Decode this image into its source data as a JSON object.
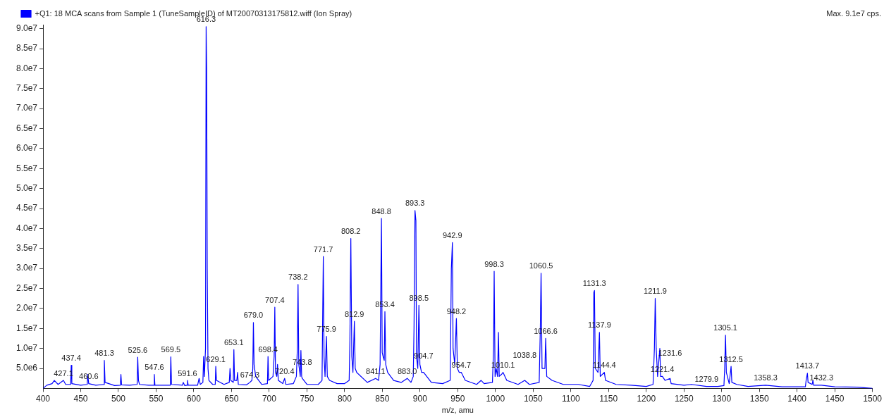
{
  "chart_data": {
    "type": "line",
    "xlabel": "m/z, amu",
    "x": [
      400,
      405,
      412,
      415,
      420,
      427.1,
      430,
      436.6,
      437.4,
      438.2,
      450,
      458.6,
      459.3,
      460.6,
      470,
      480.5,
      481.3,
      482.3,
      495,
      502.5,
      503.3,
      504.2,
      515,
      524.8,
      525.6,
      526.6,
      528,
      540,
      546.9,
      547.6,
      548.4,
      560,
      568.8,
      569.5,
      570.4,
      585,
      586,
      588,
      591,
      591.6,
      592.5,
      605,
      607,
      608.5,
      612,
      613,
      614,
      615.5,
      616.3,
      617,
      617.8,
      618.8,
      620,
      625,
      628.4,
      629.1,
      630,
      640,
      647,
      648,
      649,
      652.3,
      653.1,
      654,
      657,
      658,
      659,
      670,
      674.3,
      677,
      678.2,
      679.0,
      679.9,
      682,
      690,
      697.6,
      698.4,
      699.2,
      705,
      706.5,
      707.4,
      708.3,
      710,
      711,
      712,
      718,
      720.4,
      722,
      732,
      736,
      737.3,
      738.2,
      739.2,
      741.2,
      742,
      743,
      743.8,
      750,
      765,
      770,
      771.7,
      772.7,
      774,
      775.9,
      777,
      780,
      790,
      800,
      806,
      807,
      808.2,
      809.5,
      811,
      812.9,
      814,
      816,
      830,
      841.1,
      845,
      847,
      848.8,
      849.8,
      851,
      852.5,
      853.4,
      854.5,
      857,
      865,
      875,
      883.0,
      888,
      891,
      892,
      893.3,
      894.5,
      895.3,
      897,
      898.5,
      899.8,
      902,
      904.7,
      915,
      930,
      940,
      941.5,
      942.9,
      943.8,
      946,
      948.2,
      949.5,
      952,
      954.7,
      960,
      975,
      981,
      985,
      996,
      997.5,
      998.3,
      999.5,
      1001,
      1002.8,
      1004,
      1005,
      1008,
      1010.1,
      1015,
      1030,
      1038.8,
      1045,
      1058,
      1059.5,
      1060.5,
      1061.8,
      1064,
      1065.6,
      1066.6,
      1068,
      1075,
      1090,
      1110,
      1125,
      1129.5,
      1130.5,
      1131.3,
      1132.4,
      1136,
      1137.9,
      1139,
      1144.4,
      1146,
      1160,
      1180,
      1200,
      1209,
      1210.8,
      1211.9,
      1213.2,
      1215,
      1218,
      1219,
      1221.4,
      1225,
      1231.6,
      1233,
      1250,
      1260,
      1279.9,
      1295,
      1303,
      1304,
      1305.1,
      1306.2,
      1310,
      1312.5,
      1313.5,
      1320,
      1335,
      1358.3,
      1380,
      1411,
      1412,
      1413.7,
      1414.6,
      1420,
      1421,
      1422,
      1432.3,
      1450,
      1480,
      1500
    ],
    "series": [
      {
        "name": "+Q1: 18 MCA scans from Sample 1 (TuneSampleID) of MT20070313175812.wiff (Ion Spray)",
        "color": "#0000ff",
        "values": [
          0,
          800000.0,
          1200000.0,
          2000000.0,
          1000000.0,
          2000000.0,
          1000000.0,
          1000000.0,
          5800000.0,
          1200000.0,
          800000.0,
          1000000.0,
          3500000.0,
          1200000.0,
          800000.0,
          1000000.0,
          7000000.0,
          1500000.0,
          700000.0,
          800000.0,
          3500000.0,
          900000.0,
          800000.0,
          1000000.0,
          7800000.0,
          2000000.0,
          1000000.0,
          800000.0,
          800000.0,
          3500000.0,
          800000.0,
          800000.0,
          800000.0,
          7900000.0,
          1000000.0,
          800000.0,
          1500000.0,
          700000.0,
          800000.0,
          2000000.0,
          800000.0,
          800000.0,
          2500000.0,
          1000000.0,
          1500000.0,
          8000000.0,
          3000000.0,
          10000000.0,
          90500000.0,
          80000000.0,
          30000000.0,
          5000000.0,
          2000000.0,
          1000000.0,
          1000000.0,
          5500000.0,
          2000000.0,
          1000000.0,
          1500000.0,
          5000000.0,
          2000000.0,
          1500000.0,
          9700000.0,
          2000000.0,
          2000000.0,
          4000000.0,
          1000000.0,
          900000.0,
          1500000.0,
          2000000.0,
          5000000.0,
          16500000.0,
          6000000.0,
          3000000.0,
          1000000.0,
          1200000.0,
          8000000.0,
          2000000.0,
          3000000.0,
          8000000.0,
          20300000.0,
          4000000.0,
          3000000.0,
          6000000.0,
          2000000.0,
          1200000.0,
          2500000.0,
          1000000.0,
          1200000.0,
          3000000.0,
          10000000.0,
          26000000.0,
          6000000.0,
          3000000.0,
          9500000.0,
          3000000.0,
          2500000.0,
          1000000.0,
          1000000.0,
          2000000.0,
          33000000.0,
          8000000.0,
          3000000.0,
          13000000.0,
          3000000.0,
          2000000.0,
          1200000.0,
          1200000.0,
          2000000.0,
          12000000.0,
          37500000.0,
          8000000.0,
          4000000.0,
          16800000.0,
          5000000.0,
          4000000.0,
          1500000.0,
          2500000.0,
          2000000.0,
          6000000.0,
          42500000.0,
          9000000.0,
          8000000.0,
          7000000.0,
          19200000.0,
          6000000.0,
          4000000.0,
          2000000.0,
          1500000.0,
          2500000.0,
          1500000.0,
          3000000.0,
          15000000.0,
          44500000.0,
          42000000.0,
          8000000.0,
          5000000.0,
          20800000.0,
          6000000.0,
          4000000.0,
          4000000.0,
          1500000.0,
          1200000.0,
          2000000.0,
          30000000.0,
          36500000.0,
          10000000.0,
          6000000.0,
          17500000.0,
          5000000.0,
          4000000.0,
          4000000.0,
          2000000.0,
          1000000.0,
          2000000.0,
          1200000.0,
          1500000.0,
          10000000.0,
          29300000.0,
          3000000.0,
          5000000.0,
          3000000.0,
          14000000.0,
          3000000.0,
          3500000.0,
          4000000.0,
          2000000.0,
          1000000.0,
          2000000.0,
          1000000.0,
          1500000.0,
          15000000.0,
          28800000.0,
          5000000.0,
          5000000.0,
          5000000.0,
          12500000.0,
          3000000.0,
          2000000.0,
          1000000.0,
          1000000.0,
          500000.0,
          2000000.0,
          24000000.0,
          24500000.0,
          5000000.0,
          4000000.0,
          14000000.0,
          3000000.0,
          4000000.0,
          2000000.0,
          1000000.0,
          800000.0,
          500000.0,
          1000000.0,
          10000000.0,
          22500000.0,
          10000000.0,
          3000000.0,
          10000000.0,
          3000000.0,
          3000000.0,
          2000000.0,
          2500000.0,
          1200000.0,
          800000.0,
          1000000.0,
          500000.0,
          500000.0,
          700000.0,
          5000000.0,
          13300000.0,
          4000000.0,
          1200000.0,
          5500000.0,
          1500000.0,
          1000000.0,
          500000.0,
          800000.0,
          400000.0,
          400000.0,
          2000000.0,
          3800000.0,
          1500000.0,
          1000000.0,
          2000000.0,
          800000.0,
          800000.0,
          400000.0,
          300000.0,
          0
        ]
      }
    ],
    "xlim": [
      400,
      1500
    ],
    "xticks": [
      400,
      450,
      500,
      550,
      600,
      650,
      700,
      750,
      800,
      850,
      900,
      950,
      1000,
      1050,
      1100,
      1150,
      1200,
      1250,
      1300,
      1350,
      1400,
      1450,
      1500
    ],
    "ylim": [
      0,
      91000000.0
    ],
    "yticks": [
      {
        "value": 5000000.0,
        "label": "5.0e6"
      },
      {
        "value": 10000000.0,
        "label": "1.0e7"
      },
      {
        "value": 15000000.0,
        "label": "1.5e7"
      },
      {
        "value": 20000000.0,
        "label": "2.0e7"
      },
      {
        "value": 25000000.0,
        "label": "2.5e7"
      },
      {
        "value": 30000000.0,
        "label": "3.0e7"
      },
      {
        "value": 35000000.0,
        "label": "3.5e7"
      },
      {
        "value": 40000000.0,
        "label": "4.0e7"
      },
      {
        "value": 45000000.0,
        "label": "4.5e7"
      },
      {
        "value": 50000000.0,
        "label": "5.0e7"
      },
      {
        "value": 55000000.0,
        "label": "5.5e7"
      },
      {
        "value": 60000000.0,
        "label": "6.0e7"
      },
      {
        "value": 65000000.0,
        "label": "6.5e7"
      },
      {
        "value": 70000000.0,
        "label": "7.0e7"
      },
      {
        "value": 75000000.0,
        "label": "7.5e7"
      },
      {
        "value": 80000000.0,
        "label": "8.0e7"
      },
      {
        "value": 85000000.0,
        "label": "8.5e7"
      },
      {
        "value": 90000000.0,
        "label": "9.0e7"
      }
    ],
    "grid": false,
    "legend": "top left",
    "marker": "none",
    "line_style": "solid",
    "annotations": [
      "Max. 9.1e7 cps.",
      {
        "text": "427.1",
        "x": 427.1,
        "y": 2000000.0
      },
      {
        "text": "437.4",
        "x": 437.4,
        "y": 5800000.0
      },
      {
        "text": "460.6",
        "x": 460.6,
        "y": 1200000.0
      },
      {
        "text": "481.3",
        "x": 481.3,
        "y": 7000000.0
      },
      {
        "text": "525.6",
        "x": 525.6,
        "y": 7800000.0
      },
      {
        "text": "547.6",
        "x": 547.6,
        "y": 3500000.0
      },
      {
        "text": "569.5",
        "x": 569.5,
        "y": 7900000.0
      },
      {
        "text": "591.6",
        "x": 591.6,
        "y": 2000000.0
      },
      {
        "text": "616.3",
        "x": 616.3,
        "y": 90500000.0
      },
      {
        "text": "629.1",
        "x": 629.1,
        "y": 5500000.0
      },
      {
        "text": "653.1",
        "x": 653.1,
        "y": 9700000.0
      },
      {
        "text": "674.3",
        "x": 674.3,
        "y": 1500000.0
      },
      {
        "text": "679.0",
        "x": 679.0,
        "y": 16500000.0
      },
      {
        "text": "698.4",
        "x": 698.4,
        "y": 8000000.0
      },
      {
        "text": "707.4",
        "x": 707.4,
        "y": 20300000.0
      },
      {
        "text": "720.4",
        "x": 720.4,
        "y": 2500000.0
      },
      {
        "text": "738.2",
        "x": 738.2,
        "y": 26000000.0
      },
      {
        "text": "743.8",
        "x": 743.8,
        "y": 2500000.0
      },
      {
        "text": "771.7",
        "x": 771.7,
        "y": 33000000.0
      },
      {
        "text": "775.9",
        "x": 775.9,
        "y": 13000000.0
      },
      {
        "text": "808.2",
        "x": 808.2,
        "y": 37500000.0
      },
      {
        "text": "812.9",
        "x": 812.9,
        "y": 16800000.0
      },
      {
        "text": "841.1",
        "x": 841.1,
        "y": 2500000.0
      },
      {
        "text": "848.8",
        "x": 848.8,
        "y": 42500000.0
      },
      {
        "text": "853.4",
        "x": 853.4,
        "y": 19200000.0
      },
      {
        "text": "883.0",
        "x": 883.0,
        "y": 2500000.0
      },
      {
        "text": "893.3",
        "x": 893.3,
        "y": 44500000.0
      },
      {
        "text": "898.5",
        "x": 898.5,
        "y": 20800000.0
      },
      {
        "text": "904.7",
        "x": 904.7,
        "y": 4000000.0
      },
      {
        "text": "942.9",
        "x": 942.9,
        "y": 36500000.0
      },
      {
        "text": "948.2",
        "x": 948.2,
        "y": 17500000.0
      },
      {
        "text": "954.7",
        "x": 954.7,
        "y": 4000000.0
      },
      {
        "text": "998.3",
        "x": 998.3,
        "y": 29300000.0
      },
      {
        "text": "1010.1",
        "x": 1010.1,
        "y": 4000000.0
      },
      {
        "text": "1038.8",
        "x": 1038.8,
        "y": 2000000.0
      },
      {
        "text": "1060.5",
        "x": 1060.5,
        "y": 28800000.0
      },
      {
        "text": "1066.6",
        "x": 1066.6,
        "y": 12500000.0
      },
      {
        "text": "1131.3",
        "x": 1131.3,
        "y": 24500000.0
      },
      {
        "text": "1137.9",
        "x": 1137.9,
        "y": 14000000.0
      },
      {
        "text": "1144.4",
        "x": 1144.4,
        "y": 4000000.0
      },
      {
        "text": "1211.9",
        "x": 1211.9,
        "y": 22500000.0
      },
      {
        "text": "1221.4",
        "x": 1221.4,
        "y": 3000000.0
      },
      {
        "text": "1231.6",
        "x": 1231.6,
        "y": 2500000.0
      },
      {
        "text": "1279.9",
        "x": 1279.9,
        "y": 500000.0
      },
      {
        "text": "1305.1",
        "x": 1305.1,
        "y": 13300000.0
      },
      {
        "text": "1312.5",
        "x": 1312.5,
        "y": 5500000.0
      },
      {
        "text": "1358.3",
        "x": 1358.3,
        "y": 800000.0
      },
      {
        "text": "1413.7",
        "x": 1413.7,
        "y": 3800000.0
      },
      {
        "text": "1432.3",
        "x": 1432.3,
        "y": 800000.0
      }
    ]
  }
}
